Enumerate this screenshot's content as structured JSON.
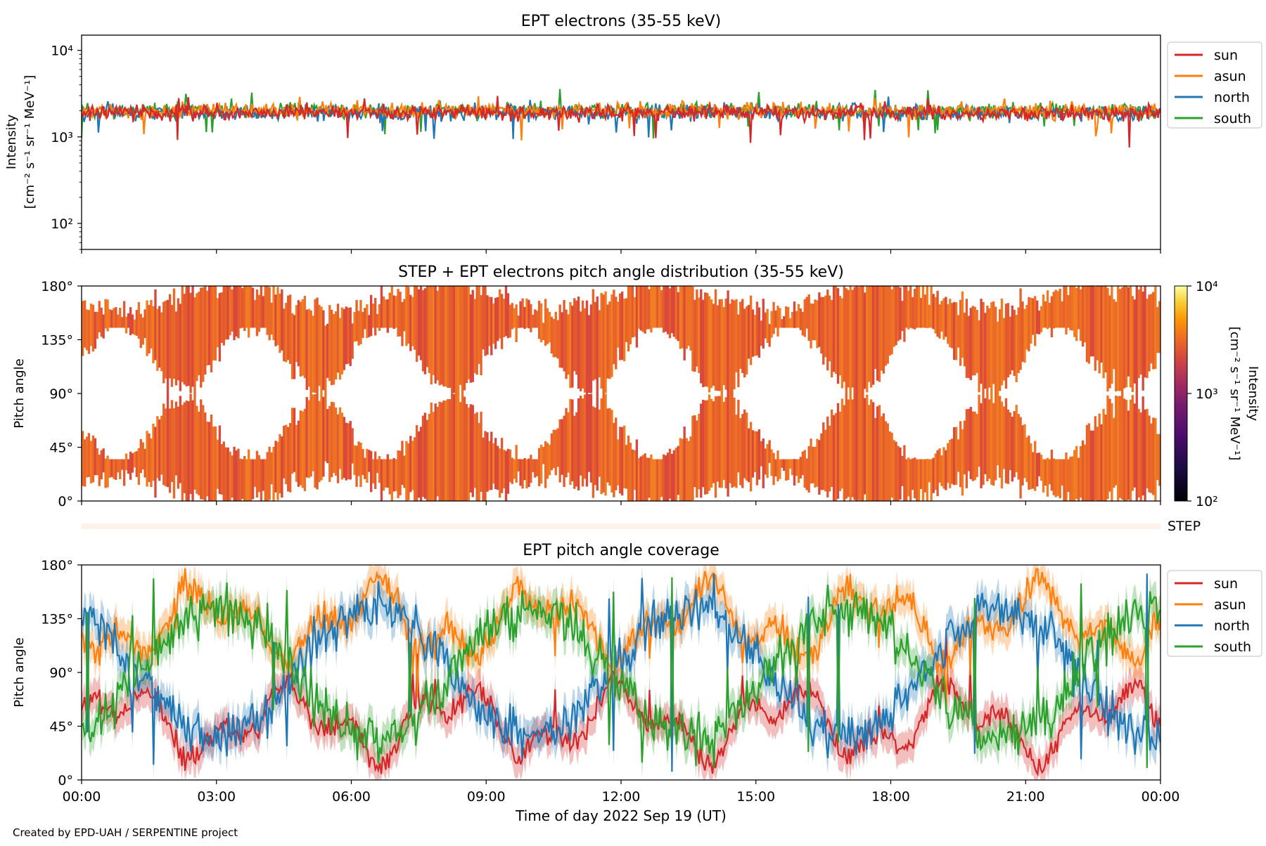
{
  "footer": "Created by EPD-UAH / SERPENTINE project",
  "colors": {
    "sun": "#d62728",
    "asun": "#ff7f0e",
    "north": "#1f77b4",
    "south": "#2ca02c",
    "strip": "#fff0eb"
  },
  "chart_data": [
    {
      "type": "line",
      "title": "EPT electrons (35-55 keV)",
      "ylabel_line1": "Intensity",
      "ylabel_line2": "[cm⁻² s⁻¹ sr⁻¹ MeV⁻¹]",
      "yscale": "log",
      "ylim": [
        50,
        15000
      ],
      "yticks": [
        "10²",
        "10³",
        "10⁴"
      ],
      "xlim": [
        "00:00",
        "24:00"
      ],
      "legend": [
        "sun",
        "asun",
        "north",
        "south"
      ],
      "legend_position": "outside right",
      "series": [
        {
          "name": "sun",
          "typical_value": 1900,
          "range": [
            750,
            3100
          ]
        },
        {
          "name": "asun",
          "typical_value": 2000,
          "range": [
            850,
            3200
          ]
        },
        {
          "name": "north",
          "typical_value": 1900,
          "range": [
            900,
            3000
          ]
        },
        {
          "name": "south",
          "typical_value": 2000,
          "range": [
            950,
            3600
          ]
        }
      ]
    },
    {
      "type": "heatmap",
      "title": "STEP + EPT electrons pitch angle distribution (35-55 keV)",
      "ylabel": "Pitch angle",
      "ylim": [
        0,
        180
      ],
      "yticks": [
        "0°",
        "45°",
        "90°",
        "135°",
        "180°"
      ],
      "colorbar": {
        "label": "Intensity",
        "units": "[cm⁻² s⁻¹ sr⁻¹ MeV⁻¹]",
        "scale": "log",
        "range": [
          100,
          10000
        ],
        "ticks": [
          "10²",
          "10³",
          "10⁴"
        ]
      },
      "strip_label": "STEP"
    },
    {
      "type": "line",
      "title": "EPT pitch angle coverage",
      "ylabel": "Pitch angle",
      "ylim": [
        0,
        180
      ],
      "yticks": [
        "0°",
        "45°",
        "90°",
        "135°",
        "180°"
      ],
      "xlabel": "Time of day 2022 Sep 19 (UT)",
      "xticks": [
        "00:00",
        "03:00",
        "06:00",
        "09:00",
        "12:00",
        "15:00",
        "18:00",
        "21:00",
        "00:00"
      ],
      "legend": [
        "sun",
        "asun",
        "north",
        "south"
      ],
      "legend_position": "outside right",
      "shaded_band": "min-max pitch angle",
      "series": [
        {
          "name": "sun",
          "typical_value": 45,
          "range": [
            5,
            125
          ]
        },
        {
          "name": "asun",
          "typical_value": 135,
          "range": [
            50,
            178
          ]
        },
        {
          "name": "north",
          "typical_value": 70,
          "range": [
            5,
            175
          ]
        },
        {
          "name": "south",
          "typical_value": 105,
          "range": [
            10,
            178
          ]
        }
      ]
    }
  ]
}
